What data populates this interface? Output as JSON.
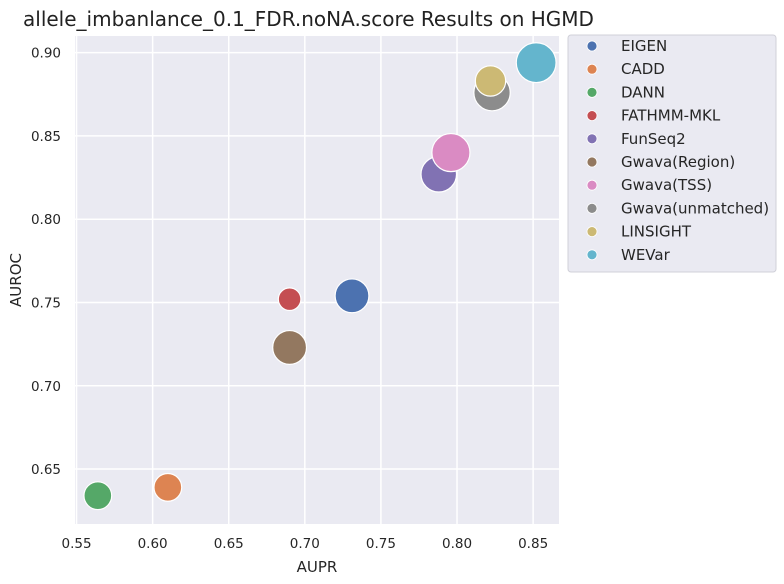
{
  "chart_data": {
    "type": "scatter",
    "title": "allele_imbanlance_0.1_FDR.noNA.score Results on HGMD",
    "xlabel": "AUPR",
    "ylabel": "AUROC",
    "xlim": [
      0.549,
      0.867
    ],
    "ylim": [
      0.617,
      0.91
    ],
    "xticks": [
      "0.55",
      "0.60",
      "0.65",
      "0.70",
      "0.75",
      "0.80",
      "0.85"
    ],
    "yticks": [
      "0.65",
      "0.70",
      "0.75",
      "0.80",
      "0.85",
      "0.90"
    ],
    "grid": true,
    "legend_position": "outside-right",
    "series": [
      {
        "name": "EIGEN",
        "color": "#4c72b0",
        "x": 0.731,
        "y": 0.754,
        "size": 2.3
      },
      {
        "name": "CADD",
        "color": "#dd8452",
        "x": 0.61,
        "y": 0.639,
        "size": 1.6
      },
      {
        "name": "DANN",
        "color": "#55a868",
        "x": 0.564,
        "y": 0.634,
        "size": 1.6
      },
      {
        "name": "FATHMM-MKL",
        "color": "#c44e52",
        "x": 0.69,
        "y": 0.752,
        "size": 1.0
      },
      {
        "name": "FunSeq2",
        "color": "#8172b3",
        "x": 0.788,
        "y": 0.827,
        "size": 2.5
      },
      {
        "name": "Gwava(Region)",
        "color": "#937860",
        "x": 0.69,
        "y": 0.723,
        "size": 2.3
      },
      {
        "name": "Gwava(TSS)",
        "color": "#da8bc3",
        "x": 0.796,
        "y": 0.84,
        "size": 2.8
      },
      {
        "name": "Gwava(unmatched)",
        "color": "#8c8c8c",
        "x": 0.823,
        "y": 0.876,
        "size": 2.6
      },
      {
        "name": "LINSIGHT",
        "color": "#ccb974",
        "x": 0.822,
        "y": 0.883,
        "size": 1.9
      },
      {
        "name": "WEVar",
        "color": "#64b5cd",
        "x": 0.852,
        "y": 0.894,
        "size": 3.0
      }
    ]
  }
}
